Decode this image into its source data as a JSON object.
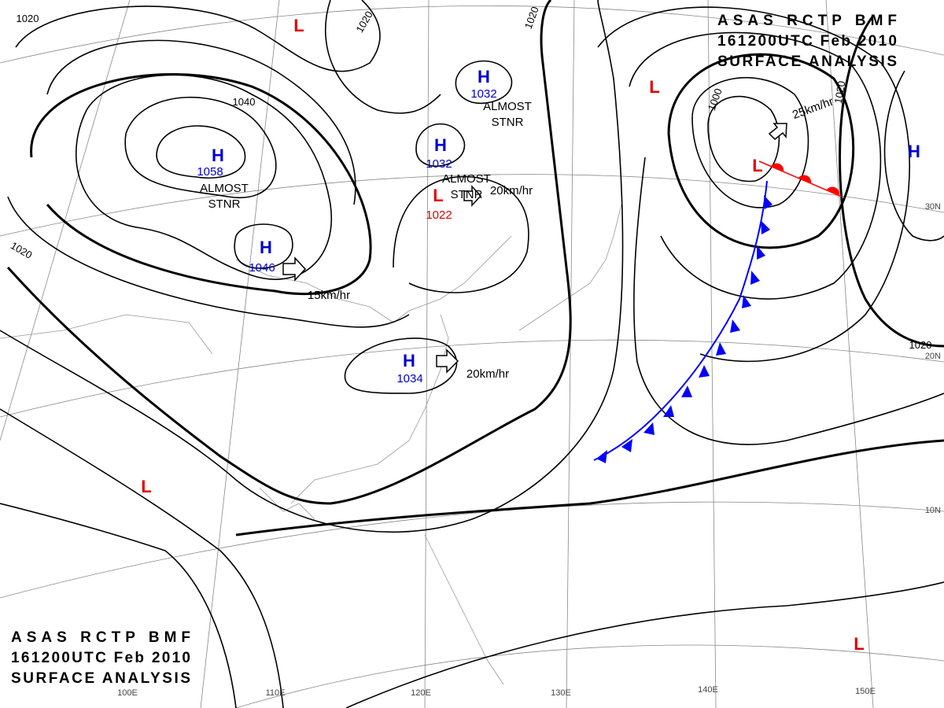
{
  "title_top": {
    "lines": [
      "ASAS RCTP BMF",
      "161200UTC Feb 2010",
      "SURFACE ANALYSIS"
    ]
  },
  "title_bottom": {
    "lines": [
      "ASAS RCTP BMF",
      "161200UTC Feb 2010",
      "SURFACE ANALYSIS"
    ]
  },
  "pressure_centers": [
    {
      "type": "H",
      "value": 1058
    },
    {
      "type": "H",
      "value": 1046
    },
    {
      "type": "H",
      "value": 1032
    },
    {
      "type": "H",
      "value": 1032
    },
    {
      "type": "H",
      "value": 1034
    },
    {
      "type": "L",
      "value": 1022
    },
    {
      "type": "L"
    },
    {
      "type": "L"
    },
    {
      "type": "L"
    },
    {
      "type": "L"
    },
    {
      "type": "L"
    },
    {
      "type": "H"
    }
  ],
  "isobar_labels": [
    1020,
    1020,
    1020,
    1040,
    1000,
    1020,
    1020,
    1020
  ],
  "movements": [
    {
      "lines": [
        "ALMOST",
        "STNR"
      ]
    },
    {
      "lines": [
        "ALMOST",
        "STNR"
      ]
    },
    {
      "lines": [
        "ALMOST",
        "STNR"
      ]
    },
    {
      "lines": [
        "15km/hr"
      ]
    },
    {
      "lines": [
        "20km/hr"
      ]
    },
    {
      "lines": [
        "20km/hr"
      ]
    },
    {
      "lines": [
        "25km/hr"
      ]
    }
  ],
  "longitudes": [
    "100E",
    "110E",
    "120E",
    "130E",
    "140E",
    "150E"
  ],
  "latitudes": [
    "30N",
    "20N",
    "10N"
  ]
}
